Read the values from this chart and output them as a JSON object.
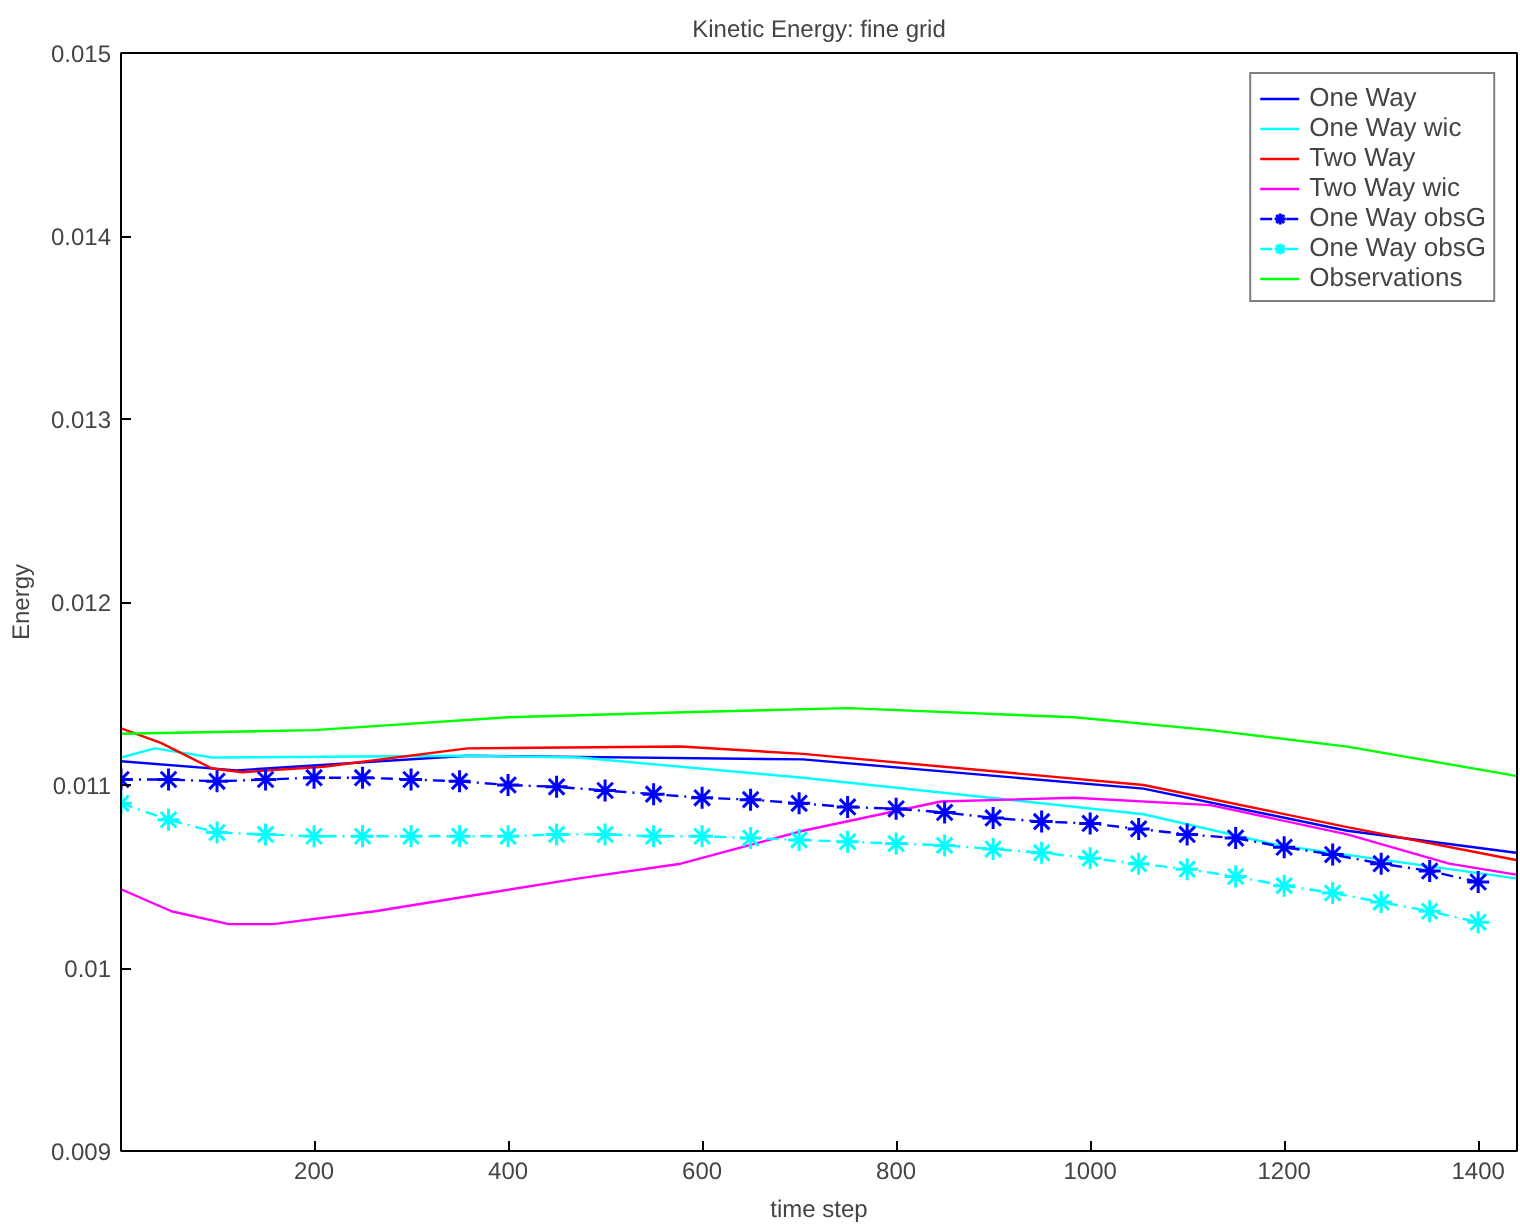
{
  "chart_data": {
    "type": "line",
    "title": "Kinetic Energy: fine grid",
    "xlabel": "time step",
    "ylabel": "Energy",
    "xlim": [
      1,
      1440
    ],
    "ylim": [
      0.009,
      0.015
    ],
    "xticks": [
      200,
      400,
      600,
      800,
      1000,
      1200,
      1400
    ],
    "yticks": [
      0.009,
      0.01,
      0.011,
      0.012,
      0.013,
      0.014,
      0.015
    ],
    "grid": false,
    "legend": "top right",
    "marker": "none",
    "line_style": "solid",
    "series": [
      {
        "name": "One Way",
        "color": "#0000ff",
        "x": [
          1,
          120,
          358,
          704,
          1055,
          1265,
          1439
        ],
        "values": [
          0.01113,
          0.01108,
          0.01116,
          0.01114,
          0.01098,
          0.01075,
          0.01063
        ]
      },
      {
        "name": "One Way wic",
        "color": "#00ffff",
        "x": [
          1,
          36,
          95,
          358,
          473,
          704,
          1055,
          1195,
          1439
        ],
        "values": [
          0.01115,
          0.0112,
          0.01115,
          0.01116,
          0.01115,
          0.01104,
          0.01084,
          0.01067,
          0.01049
        ]
      },
      {
        "name": "Two Way",
        "color": "#ff0000",
        "x": [
          1,
          42,
          95,
          126,
          210,
          358,
          578,
          704,
          1055,
          1265,
          1439
        ],
        "values": [
          0.01131,
          0.01123,
          0.01109,
          0.01107,
          0.0111,
          0.0112,
          0.01121,
          0.01117,
          0.011,
          0.01077,
          0.01059
        ]
      },
      {
        "name": "Two Way wic",
        "color": "#ff00ff",
        "x": [
          1,
          53,
          112,
          158,
          263,
          368,
          473,
          578,
          704,
          846,
          984,
          1124,
          1265,
          1370,
          1439
        ],
        "values": [
          0.01043,
          0.01031,
          0.01024,
          0.01024,
          0.01031,
          0.0104,
          0.01049,
          0.01057,
          0.01075,
          0.01091,
          0.01093,
          0.01089,
          0.01073,
          0.01057,
          0.01051
        ]
      },
      {
        "name": "One Way obsG",
        "color": "#0000ff",
        "marker": "cross",
        "line_style": "dashed",
        "x": [
          1,
          50,
          100,
          150,
          200,
          250,
          300,
          350,
          400,
          450,
          500,
          550,
          600,
          650,
          700,
          750,
          800,
          850,
          900,
          950,
          1000,
          1050,
          1100,
          1150,
          1200,
          1250,
          1300,
          1350,
          1400
        ],
        "values": [
          0.01103,
          0.01103,
          0.01102,
          0.01103,
          0.01104,
          0.01104,
          0.01103,
          0.01102,
          0.011,
          0.01099,
          0.01097,
          0.01095,
          0.01093,
          0.01092,
          0.0109,
          0.01088,
          0.01087,
          0.01085,
          0.01082,
          0.0108,
          0.01079,
          0.01076,
          0.01073,
          0.01071,
          0.01066,
          0.01062,
          0.01057,
          0.01053,
          0.01047
        ]
      },
      {
        "name": "One Way obsG",
        "color": "#00ffff",
        "marker": "cross",
        "line_style": "dashed",
        "x": [
          1,
          50,
          100,
          150,
          200,
          250,
          300,
          350,
          400,
          450,
          500,
          550,
          600,
          650,
          700,
          750,
          800,
          850,
          900,
          950,
          1000,
          1050,
          1100,
          1150,
          1200,
          1250,
          1300,
          1350,
          1400
        ],
        "values": [
          0.0109,
          0.01081,
          0.01074,
          0.01073,
          0.01072,
          0.01072,
          0.01072,
          0.01072,
          0.01072,
          0.01073,
          0.01073,
          0.01072,
          0.01072,
          0.01071,
          0.0107,
          0.01069,
          0.01068,
          0.01067,
          0.01065,
          0.01063,
          0.0106,
          0.01057,
          0.01054,
          0.0105,
          0.01045,
          0.01041,
          0.01036,
          0.01031,
          0.01025
        ]
      },
      {
        "name": "Observations",
        "color": "#00ff00",
        "x": [
          1,
          200,
          400,
          600,
          750,
          984,
          1124,
          1265,
          1439
        ],
        "values": [
          0.01128,
          0.0113,
          0.01137,
          0.0114,
          0.01142,
          0.01137,
          0.0113,
          0.01121,
          0.01105
        ]
      }
    ]
  }
}
